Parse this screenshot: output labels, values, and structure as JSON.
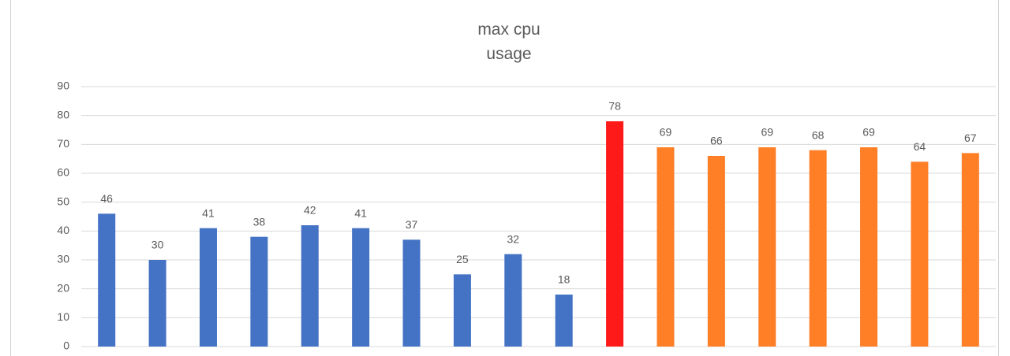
{
  "chart_data": {
    "type": "bar",
    "title": "max cpu usage",
    "categories": [
      null,
      null,
      null,
      null,
      null,
      null,
      null,
      null,
      null,
      null,
      null,
      null,
      null,
      null,
      null,
      null,
      null,
      null
    ],
    "values": [
      46,
      30,
      41,
      38,
      42,
      41,
      37,
      25,
      32,
      18,
      78,
      69,
      66,
      69,
      68,
      69,
      64,
      67
    ],
    "colors": [
      "#4472c4",
      "#4472c4",
      "#4472c4",
      "#4472c4",
      "#4472c4",
      "#4472c4",
      "#4472c4",
      "#4472c4",
      "#4472c4",
      "#4472c4",
      "#ff1a1a",
      "#ff7f27",
      "#ff7f27",
      "#ff7f27",
      "#ff7f27",
      "#ff7f27",
      "#ff7f27",
      "#ff7f27"
    ],
    "ylim": [
      0,
      90
    ],
    "yticks": [
      0,
      10,
      20,
      30,
      40,
      50,
      60,
      70,
      80,
      90
    ],
    "grid": true
  }
}
